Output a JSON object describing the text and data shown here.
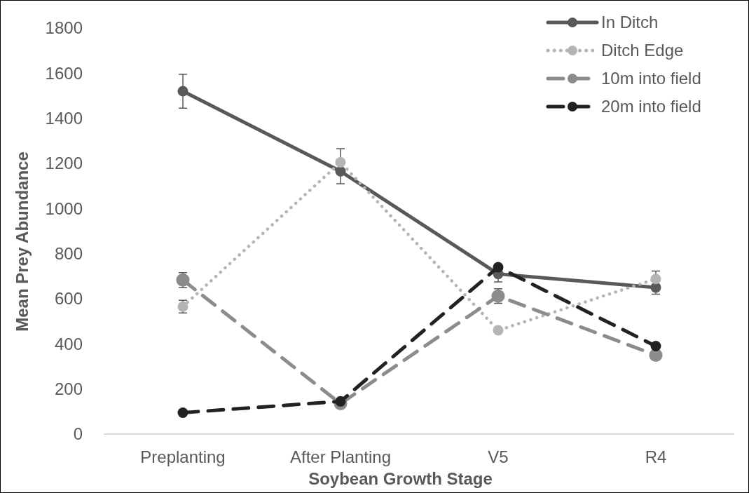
{
  "chart_data": {
    "type": "line",
    "xlabel": "Soybean Growth Stage",
    "ylabel": "Mean Prey Abundance",
    "categories": [
      "Preplanting",
      "After Planting",
      "V5",
      "R4"
    ],
    "series": [
      {
        "name": "In Ditch",
        "color": "#595959",
        "line_style": "solid",
        "values": [
          1520,
          1165,
          710,
          650
        ],
        "errors": [
          75,
          [
            1110,
            1265
          ],
          35,
          30
        ]
      },
      {
        "name": "Ditch Edge",
        "color": "#b4b4b4",
        "line_style": "dotted",
        "values": [
          565,
          1205,
          460,
          688
        ],
        "errors": [
          28,
          null,
          null,
          35
        ]
      },
      {
        "name": "10m into field",
        "color": "#8c8c8c",
        "line_style": "dashed",
        "values": [
          683,
          135,
          612,
          350
        ],
        "errors": [
          33,
          null,
          32,
          null
        ]
      },
      {
        "name": "20m into field",
        "color": "#222222",
        "line_style": "dashed",
        "values": [
          95,
          145,
          740,
          390
        ]
      }
    ],
    "ylim": [
      0,
      1800
    ],
    "yticks": [
      0,
      200,
      400,
      600,
      800,
      1000,
      1200,
      1400,
      1600,
      1800
    ],
    "grid": false,
    "legend": "top right",
    "marker": "circle"
  }
}
